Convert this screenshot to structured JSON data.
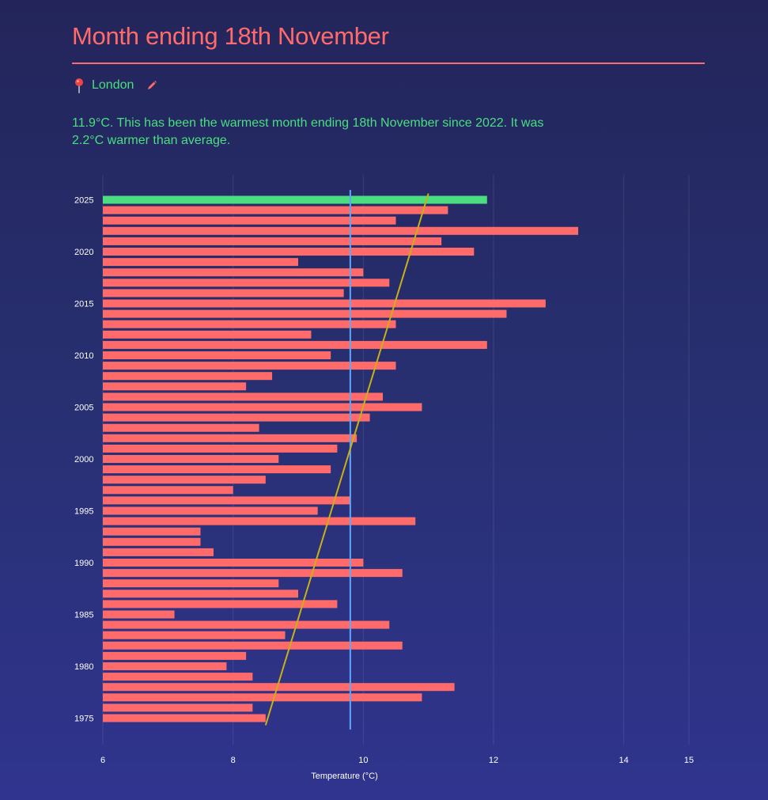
{
  "header": {
    "title": "Month ending 18th November",
    "location": "London",
    "summary": "11.9°C. This has been the warmest month ending 18th November since 2022. It was 2.2°C warmer than average."
  },
  "icons": {
    "location": "map-pin-icon",
    "edit": "pencil-icon"
  },
  "colors": {
    "accent": "#ff6b6b",
    "highlight": "#4ade80",
    "average_line": "#60a5fa",
    "trend_line": "#c8b015"
  },
  "chart_data": {
    "type": "bar",
    "orientation": "horizontal",
    "xlabel": "Temperature (°C)",
    "ylabel": "",
    "xlim": [
      6,
      15
    ],
    "x_ticks": [
      6,
      8,
      10,
      12,
      14,
      15
    ],
    "year_ticks": [
      2025,
      2020,
      2015,
      2010,
      2005,
      2000,
      1995,
      1990,
      1985,
      1980,
      1975
    ],
    "highlight_year": 2025,
    "average": 9.8,
    "trend": {
      "start_year": 1975,
      "start_value": 8.5,
      "end_year": 2025,
      "end_value": 11.0
    },
    "categories": [
      2025,
      2024,
      2023,
      2022,
      2021,
      2020,
      2019,
      2018,
      2017,
      2016,
      2015,
      2014,
      2013,
      2012,
      2011,
      2010,
      2009,
      2008,
      2007,
      2006,
      2005,
      2004,
      2003,
      2002,
      2001,
      2000,
      1999,
      1998,
      1997,
      1996,
      1995,
      1994,
      1993,
      1992,
      1991,
      1990,
      1989,
      1988,
      1987,
      1986,
      1985,
      1984,
      1983,
      1982,
      1981,
      1980,
      1979,
      1978,
      1977,
      1976,
      1975
    ],
    "values": [
      11.9,
      11.3,
      10.5,
      13.3,
      11.2,
      11.7,
      9.0,
      10.0,
      10.4,
      9.7,
      12.8,
      12.2,
      10.5,
      9.2,
      11.9,
      9.5,
      10.5,
      8.6,
      8.2,
      10.3,
      10.9,
      10.1,
      8.4,
      9.9,
      9.6,
      8.7,
      9.5,
      8.5,
      8.0,
      9.8,
      9.3,
      10.8,
      7.5,
      7.5,
      7.7,
      10.0,
      10.6,
      8.7,
      9.0,
      9.6,
      7.1,
      10.4,
      8.8,
      10.6,
      8.2,
      7.9,
      8.3,
      11.4,
      10.9,
      8.3,
      8.5
    ]
  }
}
